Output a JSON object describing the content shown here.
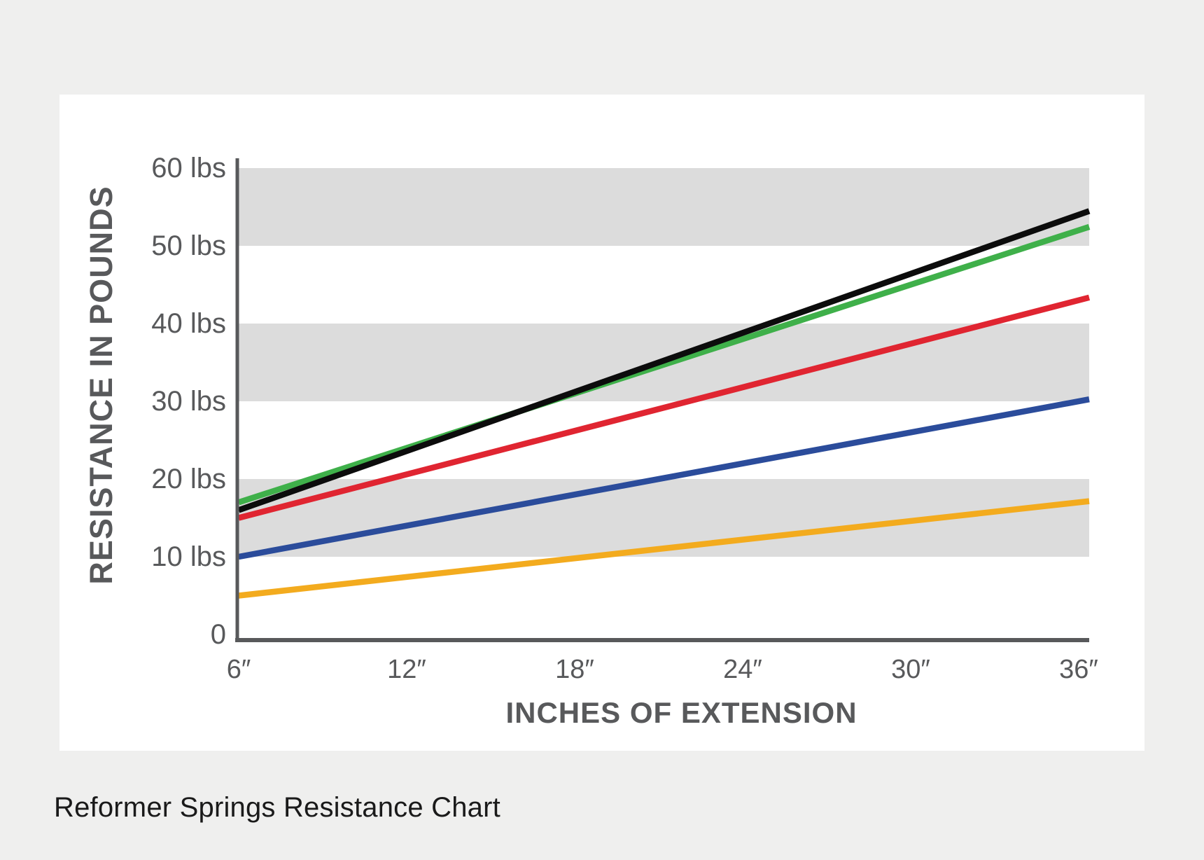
{
  "page": {
    "background": "#efefee",
    "caption": "Reformer Springs Resistance Chart"
  },
  "chart_data": {
    "type": "line",
    "title": "",
    "xlabel": "INCHES OF EXTENSION",
    "ylabel": "RESISTANCE IN POUNDS",
    "x_unit": "inches",
    "y_unit": "lbs",
    "x": [
      6,
      36
    ],
    "x_ticks": [
      6,
      12,
      18,
      24,
      30,
      36
    ],
    "x_tick_labels": [
      "6″",
      "12″",
      "18″",
      "24″",
      "30″",
      "36″"
    ],
    "y_ticks": [
      0,
      10,
      20,
      30,
      40,
      50,
      60
    ],
    "y_tick_labels": [
      "0",
      "10 lbs",
      "20 lbs",
      "30 lbs",
      "40 lbs",
      "50 lbs",
      "60 lbs"
    ],
    "xlim": [
      6,
      36.4
    ],
    "ylim": [
      0,
      60
    ],
    "grid": "banded",
    "grid_bands_lbs": [
      [
        10,
        20
      ],
      [
        30,
        40
      ],
      [
        50,
        60
      ]
    ],
    "band_color": "#dcdcdc",
    "axis_color": "#58595b",
    "label_color": "#58595b",
    "legend": "none",
    "series": [
      {
        "name": "yellow-spring",
        "color": "#f3ab1e",
        "values": [
          5,
          17
        ]
      },
      {
        "name": "blue-spring",
        "color": "#2b4c9b",
        "values": [
          10,
          30
        ]
      },
      {
        "name": "red-spring",
        "color": "#e02531",
        "values": [
          15,
          43
        ]
      },
      {
        "name": "green-spring",
        "color": "#3fb04a",
        "values": [
          17,
          52
        ]
      },
      {
        "name": "black-spring",
        "color": "#0c0c0c",
        "values": [
          16,
          54
        ]
      }
    ]
  }
}
